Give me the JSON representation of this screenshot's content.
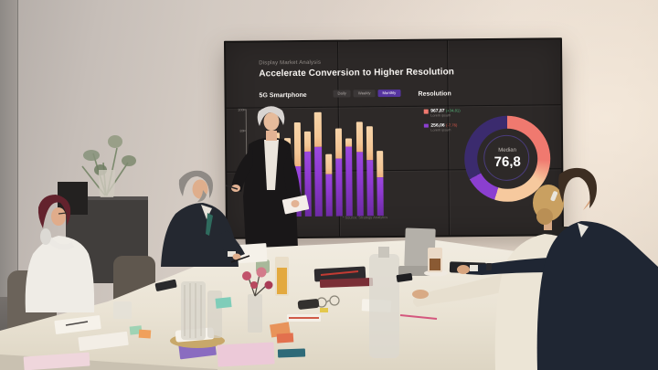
{
  "display": {
    "eyebrow": "Display Market Analysis",
    "title": "Accelerate Conversion to Higher Resolution",
    "left_panel": {
      "title": "5G Smartphone"
    },
    "toggles": [
      {
        "label": "Daily",
        "active": false
      },
      {
        "label": "Weekly",
        "active": false
      },
      {
        "label": "Monthly",
        "active": true
      }
    ],
    "right_panel": {
      "title": "Resolution"
    }
  },
  "chart_data": [
    {
      "type": "bar",
      "title": "5G Smartphone",
      "stacked": true,
      "ylim": [
        0,
        100
      ],
      "yticks": [
        "100",
        "80"
      ],
      "grid": false,
      "series": [
        {
          "name": "purple-segment",
          "color": "#8f3ad1",
          "values": [
            45,
            50,
            45,
            47,
            60,
            64,
            39,
            53,
            64,
            59,
            52,
            36
          ]
        },
        {
          "name": "peach-segment",
          "color": "#f3c695",
          "values": [
            20,
            28,
            28,
            40,
            19,
            33,
            19,
            28,
            8,
            28,
            31,
            24
          ]
        }
      ],
      "footnote": "* Source: Strategy Analytics"
    },
    {
      "type": "donut",
      "title": "Resolution",
      "center_label": "Median",
      "center_value": "76,8",
      "segments": [
        {
          "name": "coral",
          "color": "#f0796f",
          "start_deg": 0,
          "end_deg": 126,
          "fade_deg": 34
        },
        {
          "name": "peach",
          "color": "#f6c99e",
          "start_deg": 126,
          "end_deg": 198
        },
        {
          "name": "violet",
          "color": "#8b3fd0",
          "start_deg": 198,
          "end_deg": 242
        },
        {
          "name": "indigo",
          "color": "#3b2b6e",
          "start_deg": 242,
          "end_deg": 360
        }
      ],
      "legend": [
        {
          "swatch": "#f0796f",
          "value": "967,87",
          "delta": "(+34,81)",
          "delta_color": "#56b87c",
          "sublabel": "Lorem ipsum"
        },
        {
          "swatch": "#8b3fd0",
          "value": "256,06",
          "delta": "(-7,76)",
          "delta_color": "#e05a4c",
          "sublabel": "Lorem ipsum"
        }
      ],
      "legend_position": "left"
    }
  ],
  "colors": {
    "screen_bg": "#2d2928",
    "toggle_active": "#55349f",
    "bar_purple": "#8f3ad1",
    "bar_peach": "#f3c695",
    "donut_coral": "#f0796f",
    "donut_peach": "#f6c99e",
    "donut_violet": "#8b3fd0",
    "donut_indigo": "#3b2b6e",
    "delta_green": "#56b87c",
    "delta_red": "#e05a4c"
  }
}
